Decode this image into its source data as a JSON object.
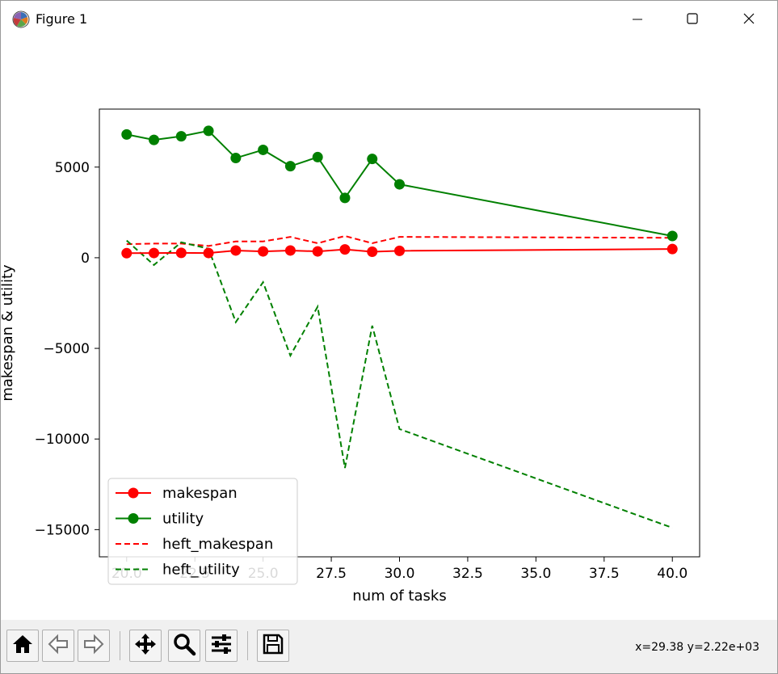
{
  "window": {
    "title": "Figure 1",
    "icon": "matplotlib-icon"
  },
  "title_buttons": [
    "minimize-icon",
    "maximize-icon",
    "close-icon"
  ],
  "toolbar": {
    "buttons": [
      "home-icon",
      "back-icon",
      "forward-icon",
      "pan-icon",
      "zoom-icon",
      "subplots-icon",
      "save-icon"
    ],
    "coords": "x=29.38 y=2.22e+03"
  },
  "chart_data": {
    "type": "line",
    "title": "",
    "xlabel": "num of tasks",
    "ylabel": "makespan & utility",
    "xlim": [
      19.0,
      41.0
    ],
    "ylim": [
      -16500,
      8200
    ],
    "xticks": [
      "20.0",
      "22.5",
      "25.0",
      "27.5",
      "30.0",
      "32.5",
      "35.0",
      "37.5",
      "40.0"
    ],
    "yticks": [
      "5000",
      "0",
      "−5000",
      "−10000",
      "−15000"
    ],
    "x": [
      20,
      21,
      22,
      23,
      24,
      25,
      26,
      27,
      28,
      29,
      30,
      40
    ],
    "series": [
      {
        "name": "makespan",
        "color": "#ff0000",
        "style": "solid",
        "marker": "circle",
        "values": [
          250,
          260,
          270,
          260,
          400,
          350,
          400,
          350,
          460,
          330,
          380,
          480
        ]
      },
      {
        "name": "utility",
        "color": "#008000",
        "style": "solid",
        "marker": "circle",
        "values": [
          6800,
          6500,
          6700,
          7000,
          5500,
          5950,
          5050,
          5550,
          3300,
          5450,
          4050,
          1200
        ]
      },
      {
        "name": "heft_makespan",
        "color": "#ff0000",
        "style": "dashed",
        "marker": "none",
        "values": [
          750,
          780,
          780,
          650,
          900,
          900,
          1150,
          800,
          1200,
          800,
          1150,
          1100
        ]
      },
      {
        "name": "heft_utility",
        "color": "#008000",
        "style": "dashed",
        "marker": "none",
        "values": [
          950,
          -400,
          850,
          500,
          -3550,
          -1350,
          -5400,
          -2700,
          -11600,
          -3750,
          -9450,
          -14900
        ]
      }
    ],
    "legend": "lower-left",
    "grid": false
  }
}
